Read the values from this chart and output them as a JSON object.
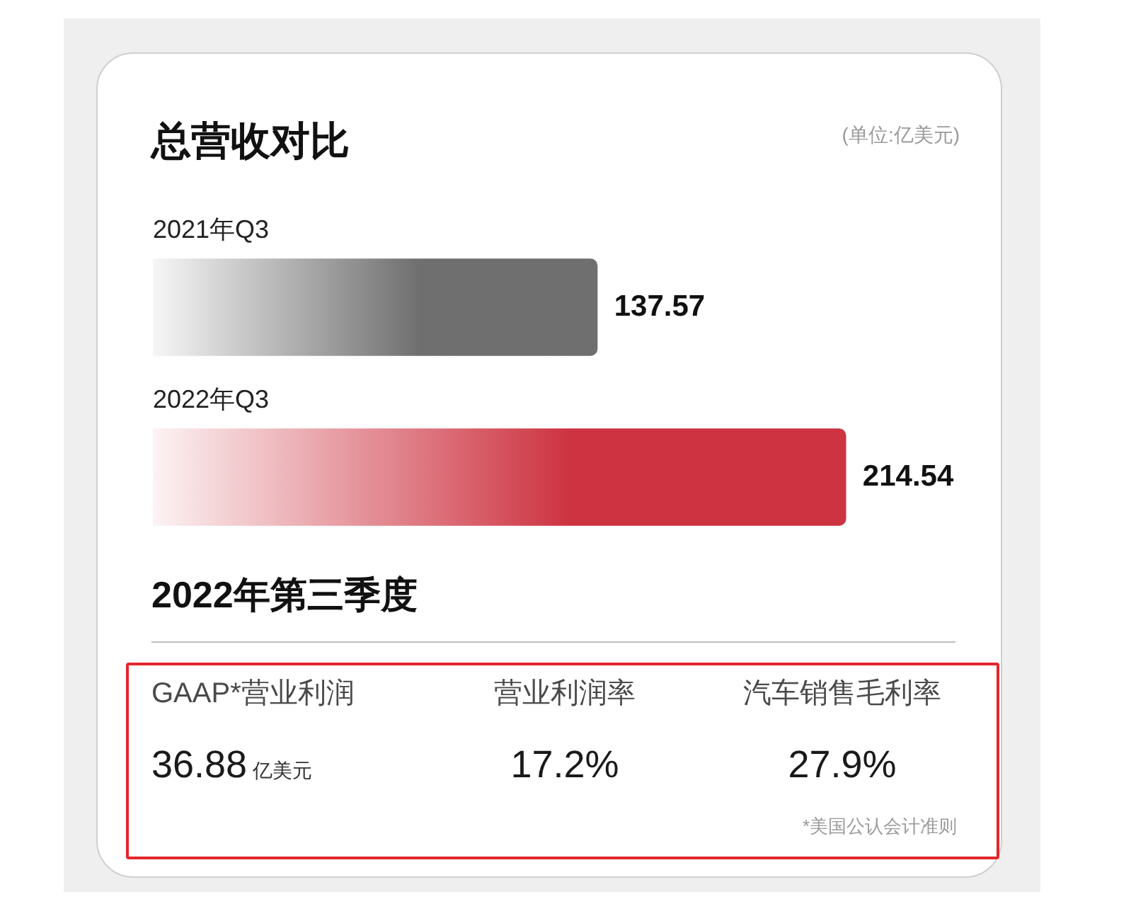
{
  "chart_data": [
    {
      "type": "bar",
      "orientation": "horizontal",
      "title": "总营收对比",
      "annotations": [
        "(单位:亿美元)"
      ],
      "categories": [
        "2021年Q3",
        "2022年Q3"
      ],
      "values": [
        137.57,
        214.54
      ],
      "colors": [
        "#6f6f6f",
        "#cd3341"
      ],
      "data_labels": true
    },
    {
      "type": "other",
      "title": "2022年第三季度",
      "categories": [
        "GAAP*营业利润",
        "营业利润率",
        "汽车销售毛利率"
      ],
      "values": [
        36.88,
        17.2,
        27.9
      ],
      "value_labels": [
        "36.88",
        "17.2%",
        "27.9%"
      ],
      "annotations": [
        "亿美元",
        "*美国公认会计准则"
      ]
    }
  ]
}
